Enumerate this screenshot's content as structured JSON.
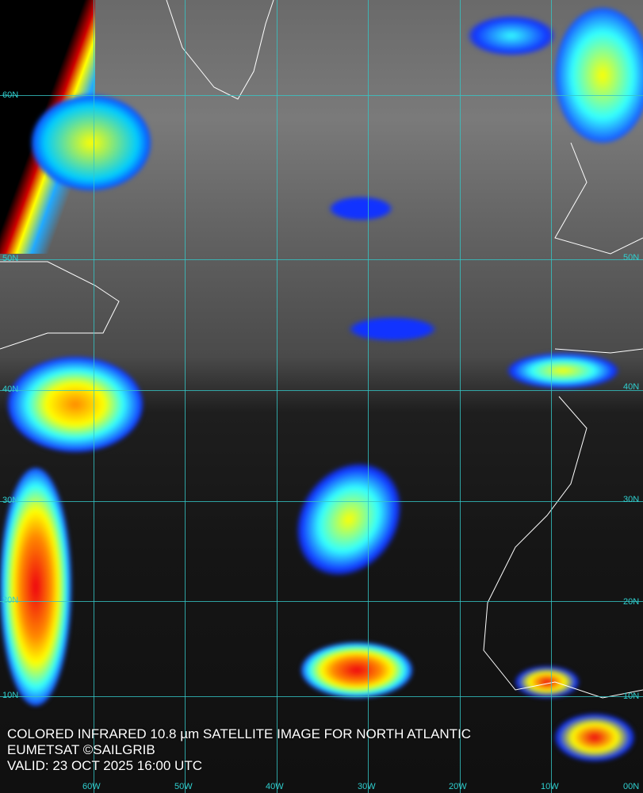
{
  "caption": {
    "line1": "COLORED INFRARED 10.8 µm SATELLITE IMAGE FOR NORTH ATLANTIC",
    "line2": "EUMETSAT ©SAILGRIB",
    "line3": "VALID:  23 OCT 2025 16:00 UTC"
  },
  "lat_labels_left": [
    "60N",
    "50N",
    "40N",
    "30N",
    "20N",
    "10N"
  ],
  "lat_labels_right": [
    "50N",
    "40N",
    "30N",
    "20N",
    "10N"
  ],
  "lon_labels": [
    "60W",
    "50W",
    "40W",
    "30W",
    "20W",
    "10W",
    "00N"
  ],
  "colors": {
    "grid": "#35c6c6",
    "cold_cloud_blue": "#1a2cff",
    "cyan": "#19e0e0",
    "yellow": "#ffee22",
    "red": "#e01010",
    "coastline": "#ffffff"
  }
}
